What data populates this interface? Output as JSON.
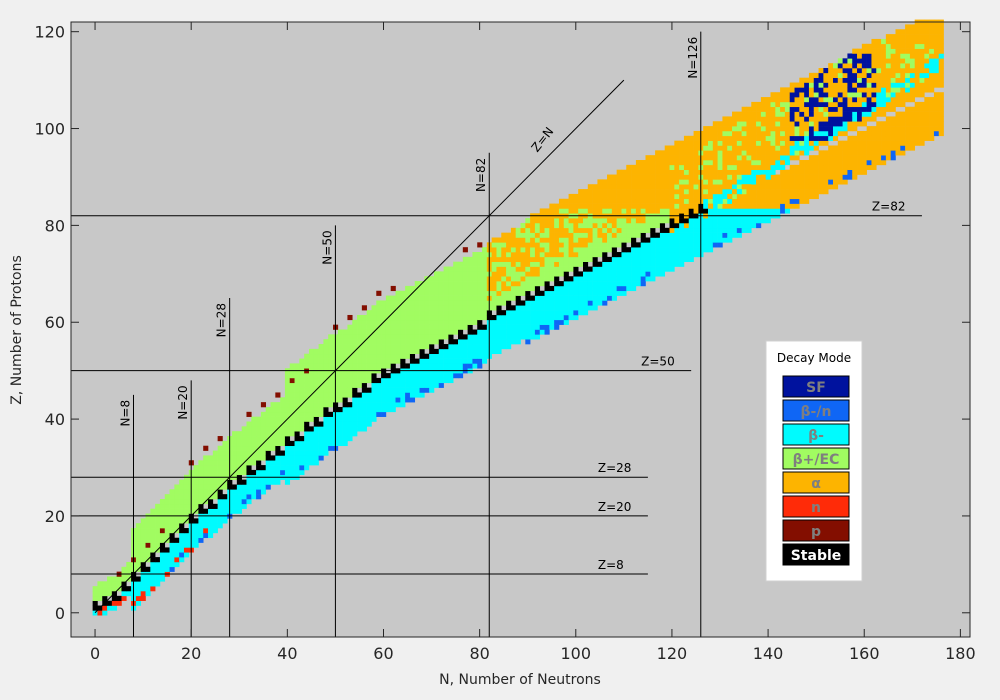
{
  "chart_data": {
    "type": "heatmap",
    "title": "",
    "xlabel": "N, Number of Neutrons",
    "ylabel": "Z, Number of Protons",
    "xlim": [
      -5,
      182
    ],
    "ylim": [
      -5,
      122
    ],
    "x_ticks": [
      "0",
      "20",
      "40",
      "60",
      "80",
      "100",
      "120",
      "140",
      "160",
      "180"
    ],
    "y_ticks": [
      "0",
      "20",
      "40",
      "60",
      "80",
      "100",
      "120"
    ],
    "grid": false,
    "background": "#c8c8c8",
    "legend": {
      "title": "Decay Mode",
      "placement": "right",
      "entries": [
        {
          "key": "SF",
          "label": "SF",
          "color": "#00129e",
          "text_color": "#7f7f7f"
        },
        {
          "key": "bn",
          "label": "β-/n",
          "color": "#0f66f5",
          "text_color": "#7f7f7f"
        },
        {
          "key": "bm",
          "label": "β-",
          "color": "#00fbfe",
          "text_color": "#7f7f7f"
        },
        {
          "key": "bp",
          "label": "β+/EC",
          "color": "#a1fc61",
          "text_color": "#7f7f7f"
        },
        {
          "key": "a",
          "label": "α",
          "color": "#fdb400",
          "text_color": "#7f7f7f"
        },
        {
          "key": "n",
          "label": "n",
          "color": "#ff2b08",
          "text_color": "#7f7f7f"
        },
        {
          "key": "p",
          "label": "p",
          "color": "#830e00",
          "text_color": "#7f7f7f"
        },
        {
          "key": "st",
          "label": "Stable",
          "color": "#000000",
          "text_color": "#ffffff"
        }
      ]
    },
    "reference_lines": [
      {
        "label": "Z=N",
        "kind": "diagonal",
        "from": [
          0,
          0
        ],
        "to": [
          110,
          110
        ]
      },
      {
        "label": "N=8",
        "kind": "vertical",
        "value": 8,
        "span": [
          -5,
          45
        ]
      },
      {
        "label": "N=20",
        "kind": "vertical",
        "value": 20,
        "span": [
          -5,
          48
        ]
      },
      {
        "label": "N=28",
        "kind": "vertical",
        "value": 28,
        "span": [
          -5,
          65
        ]
      },
      {
        "label": "N=50",
        "kind": "vertical",
        "value": 50,
        "span": [
          -5,
          80
        ]
      },
      {
        "label": "N=82",
        "kind": "vertical",
        "value": 82,
        "span": [
          -5,
          95
        ]
      },
      {
        "label": "N=126",
        "kind": "vertical",
        "value": 126,
        "span": [
          -5,
          120
        ]
      },
      {
        "label": "Z=8",
        "kind": "horizontal",
        "value": 8,
        "span": [
          -5,
          115
        ]
      },
      {
        "label": "Z=20",
        "kind": "horizontal",
        "value": 20,
        "span": [
          -5,
          115
        ]
      },
      {
        "label": "Z=28",
        "kind": "horizontal",
        "value": 28,
        "span": [
          -5,
          115
        ]
      },
      {
        "label": "Z=50",
        "kind": "horizontal",
        "value": 50,
        "span": [
          -5,
          124
        ]
      },
      {
        "label": "Z=82",
        "kind": "horizontal",
        "value": 82,
        "span": [
          -5,
          172
        ]
      }
    ],
    "stable_valley": [
      [
        0,
        1
      ],
      [
        2,
        2
      ],
      [
        4,
        3
      ],
      [
        6,
        5
      ],
      [
        8,
        7
      ],
      [
        10,
        9
      ],
      [
        12,
        11
      ],
      [
        14,
        13
      ],
      [
        16,
        15
      ],
      [
        18,
        17
      ],
      [
        20,
        19
      ],
      [
        22,
        21
      ],
      [
        24,
        22
      ],
      [
        26,
        24
      ],
      [
        28,
        26
      ],
      [
        30,
        27
      ],
      [
        32,
        29
      ],
      [
        34,
        30
      ],
      [
        36,
        32
      ],
      [
        38,
        33
      ],
      [
        40,
        35
      ],
      [
        42,
        36
      ],
      [
        44,
        38
      ],
      [
        46,
        39
      ],
      [
        48,
        41
      ],
      [
        50,
        42
      ],
      [
        52,
        43
      ],
      [
        54,
        45
      ],
      [
        56,
        46
      ],
      [
        58,
        48
      ],
      [
        60,
        49
      ],
      [
        62,
        50
      ],
      [
        64,
        51
      ],
      [
        66,
        52
      ],
      [
        68,
        53
      ],
      [
        70,
        54
      ],
      [
        72,
        55
      ],
      [
        74,
        56
      ],
      [
        76,
        57
      ],
      [
        78,
        58
      ],
      [
        80,
        59
      ],
      [
        82,
        61
      ],
      [
        84,
        62
      ],
      [
        86,
        63
      ],
      [
        88,
        64
      ],
      [
        90,
        65
      ],
      [
        92,
        66
      ],
      [
        94,
        67
      ],
      [
        96,
        68
      ],
      [
        98,
        69
      ],
      [
        100,
        70
      ],
      [
        102,
        71
      ],
      [
        104,
        72
      ],
      [
        106,
        73
      ],
      [
        108,
        74
      ],
      [
        110,
        75
      ],
      [
        112,
        76
      ],
      [
        114,
        77
      ],
      [
        116,
        78
      ],
      [
        118,
        79
      ],
      [
        120,
        80
      ],
      [
        122,
        81
      ],
      [
        124,
        82
      ],
      [
        126,
        83
      ]
    ],
    "region_bands": [
      {
        "mode": "bp",
        "x_range": [
          1,
          150
        ],
        "z_offset_above_valley": [
          1,
          16
        ]
      },
      {
        "mode": "bm",
        "x_range": [
          1,
          150
        ],
        "z_offset_below_valley": [
          1,
          9
        ]
      },
      {
        "mode": "a",
        "x_range": [
          82,
          150
        ],
        "z_range": [
          60,
          116
        ]
      },
      {
        "mode": "SF",
        "x_range": [
          145,
          162
        ],
        "z_range": [
          98,
          115
        ]
      },
      {
        "mode": "n",
        "x_range": [
          4,
          22
        ],
        "z_offset_below_valley": [
          7,
          9
        ]
      },
      {
        "mode": "p",
        "x_range": [
          2,
          80
        ],
        "z_offset_above_valley": [
          14,
          17
        ]
      }
    ]
  }
}
